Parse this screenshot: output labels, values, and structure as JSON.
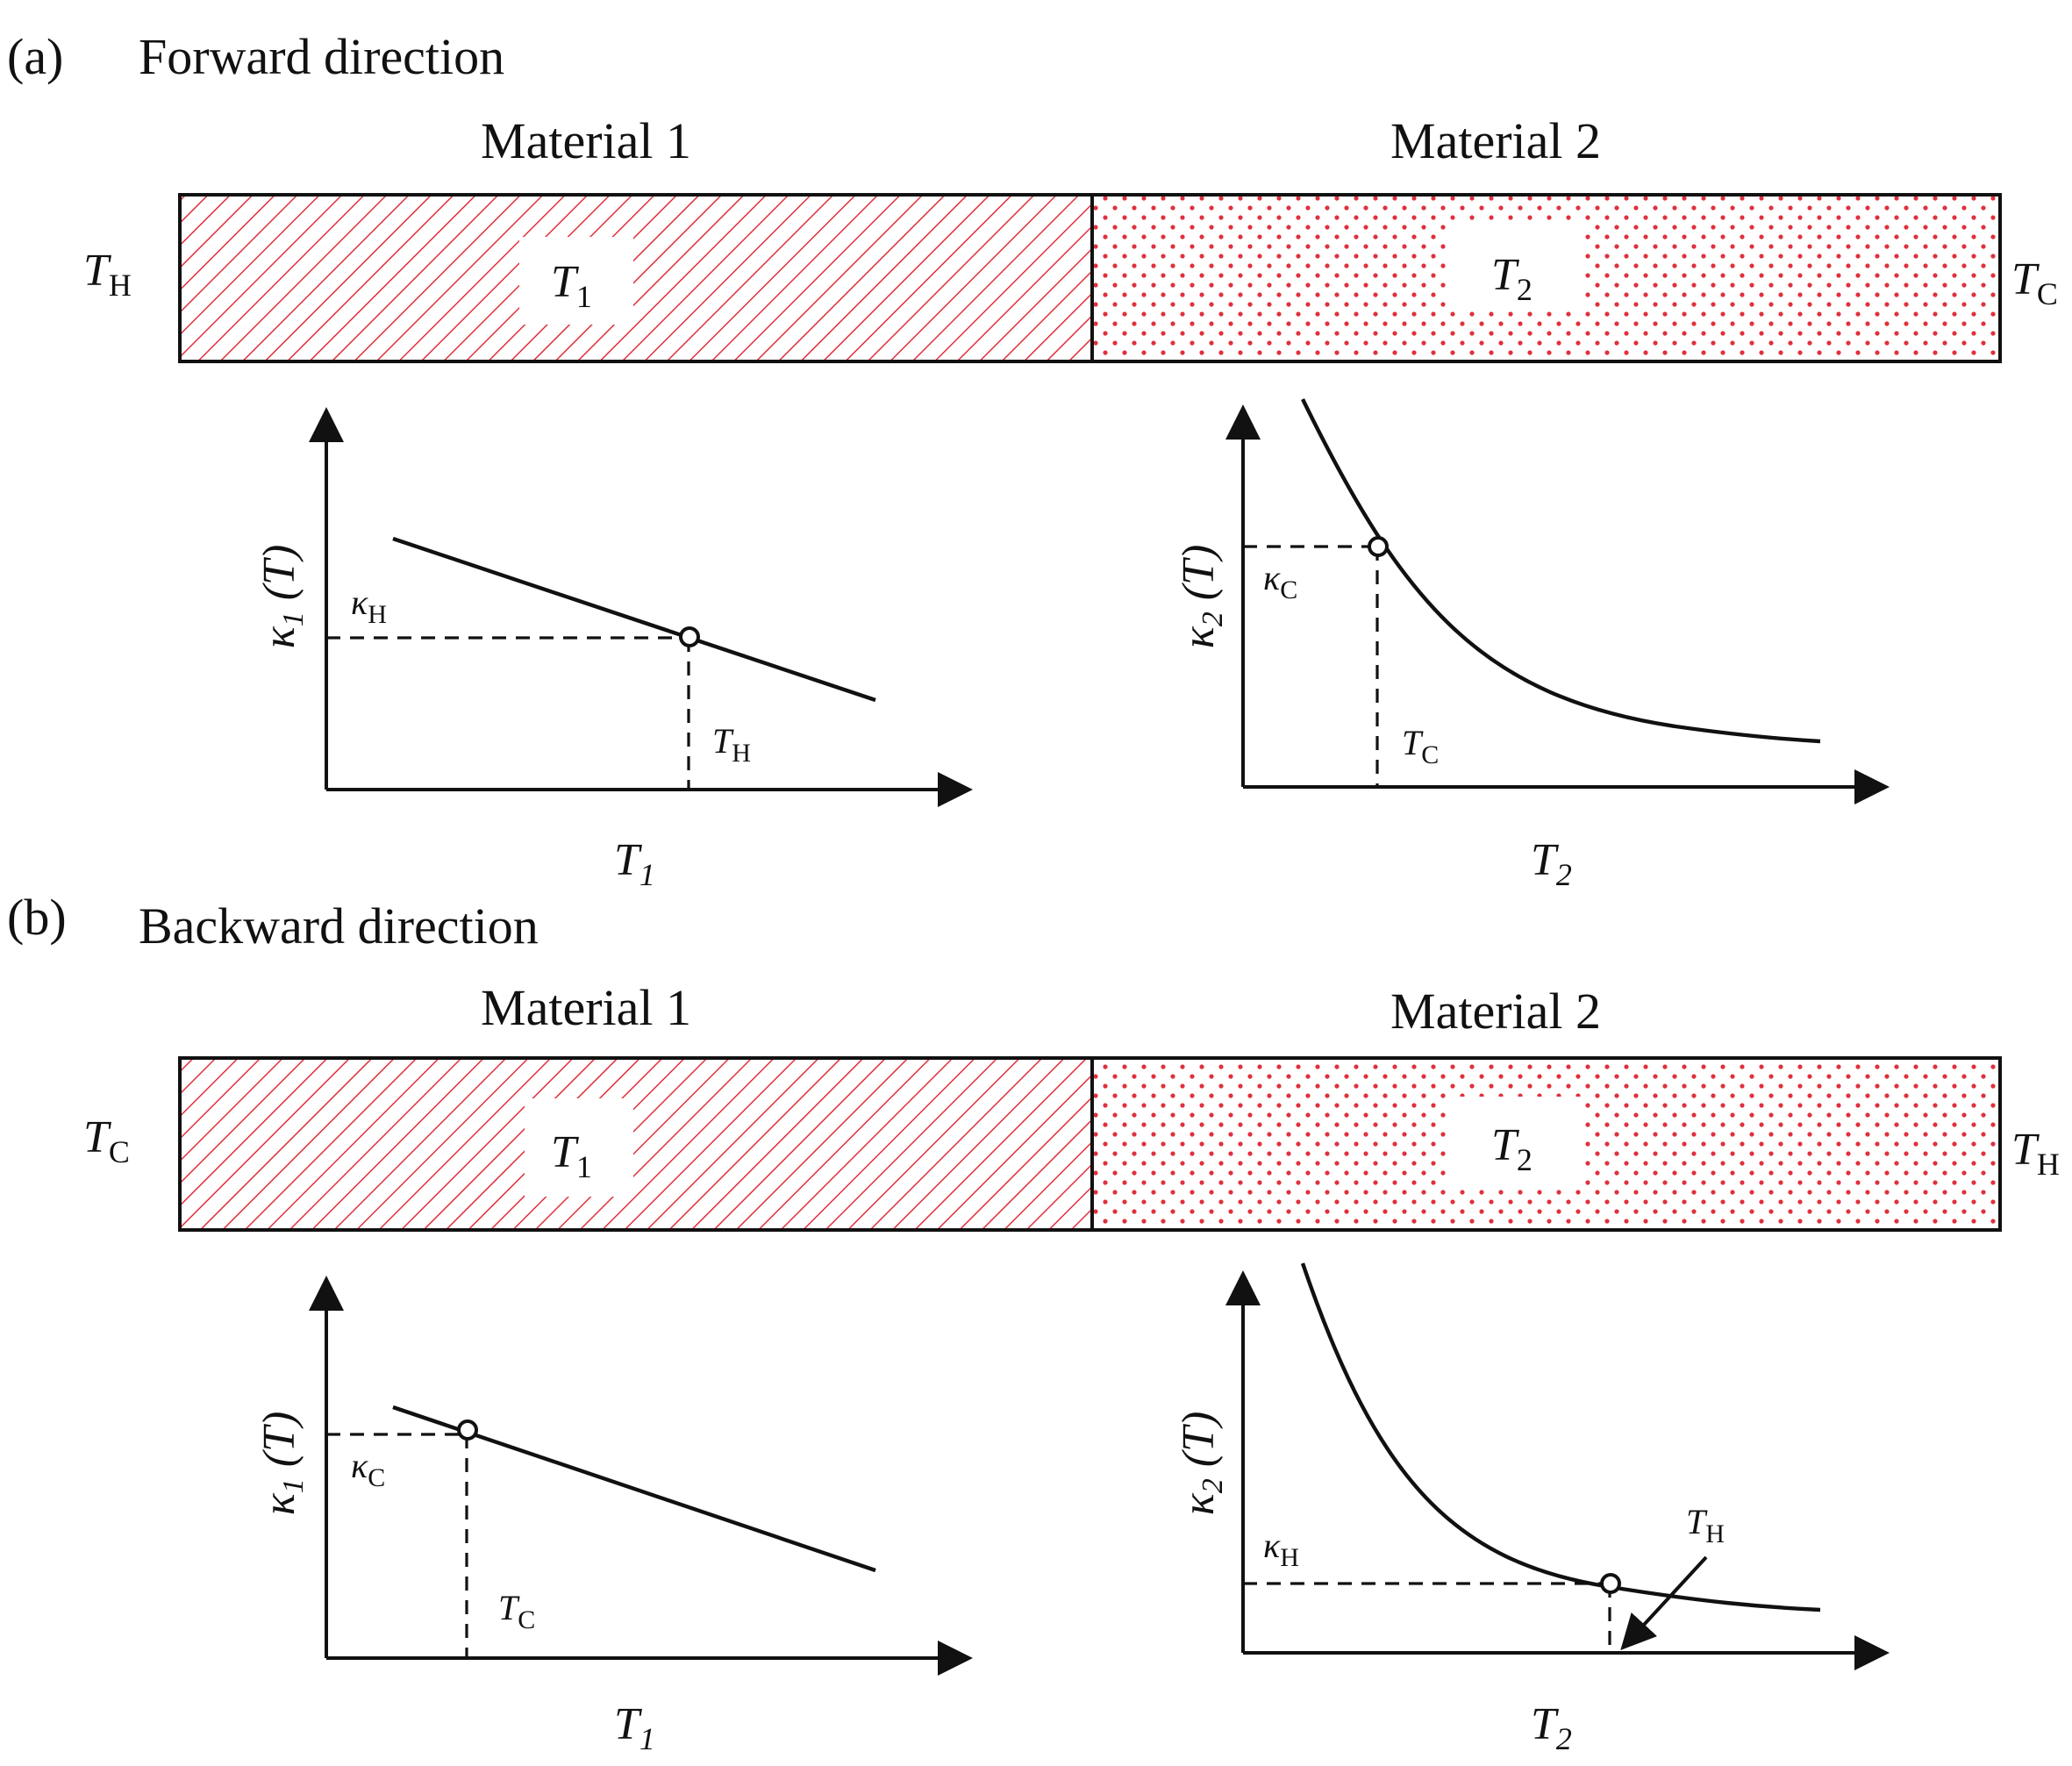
{
  "panels": [
    {
      "letter": "(a)",
      "title": "Forward direction",
      "material1": "Material 1",
      "material2": "Material 2",
      "left_end": {
        "main": "T",
        "sub": "H"
      },
      "right_end": {
        "main": "T",
        "sub": "C"
      },
      "bar1_label": {
        "main": "T",
        "sub": "1"
      },
      "bar2_label": {
        "main": "T",
        "sub": "2"
      },
      "plot1": {
        "ylabel": {
          "main": "κ",
          "sub": "1",
          "rest": " (T)"
        },
        "xlabel": {
          "main": "T",
          "sub": "1"
        },
        "kappa_label": {
          "main": "κ",
          "sub": "H"
        },
        "temp_label": {
          "main": "T",
          "sub": "H"
        }
      },
      "plot2": {
        "ylabel": {
          "main": "κ",
          "sub": "2",
          "rest": " (T)"
        },
        "xlabel": {
          "main": "T",
          "sub": "2"
        },
        "kappa_label": {
          "main": "κ",
          "sub": "C"
        },
        "temp_label": {
          "main": "T",
          "sub": "C"
        }
      }
    },
    {
      "letter": "(b)",
      "title": "Backward direction",
      "material1": "Material 1",
      "material2": "Material 2",
      "left_end": {
        "main": "T",
        "sub": "C"
      },
      "right_end": {
        "main": "T",
        "sub": "H"
      },
      "bar1_label": {
        "main": "T",
        "sub": "1"
      },
      "bar2_label": {
        "main": "T",
        "sub": "2"
      },
      "plot1": {
        "ylabel": {
          "main": "κ",
          "sub": "1",
          "rest": " (T)"
        },
        "xlabel": {
          "main": "T",
          "sub": "1"
        },
        "kappa_label": {
          "main": "κ",
          "sub": "C"
        },
        "temp_label": {
          "main": "T",
          "sub": "C"
        }
      },
      "plot2": {
        "ylabel": {
          "main": "κ",
          "sub": "2",
          "rest": " (T)"
        },
        "xlabel": {
          "main": "T",
          "sub": "2"
        },
        "kappa_label": {
          "main": "κ",
          "sub": "H"
        },
        "temp_label": {
          "main": "T",
          "sub": "H"
        }
      }
    }
  ],
  "colors": {
    "hatch": "#e0303c",
    "dots": "#e0303c",
    "ink": "#111111",
    "label_bg": "#ffffff"
  }
}
